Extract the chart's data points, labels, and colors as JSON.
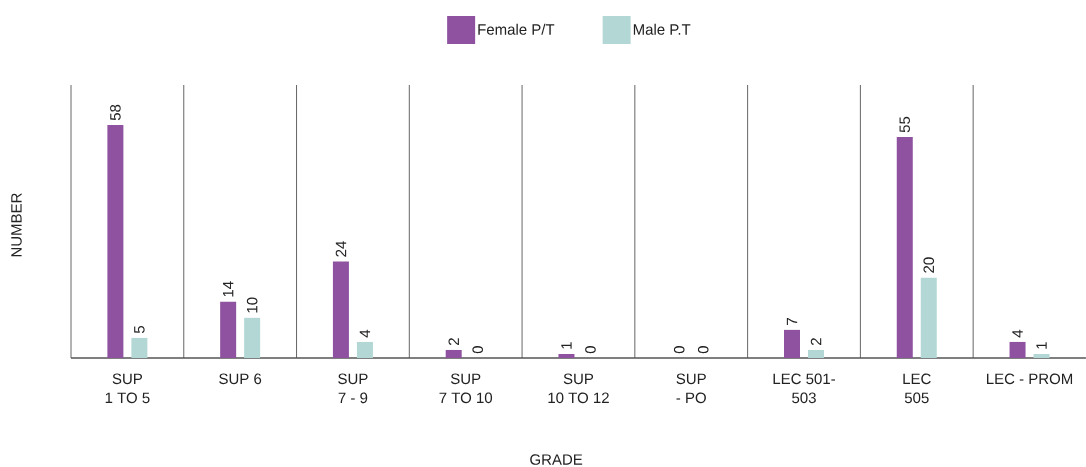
{
  "chart_data": {
    "type": "bar",
    "xlabel": "GRADE",
    "ylabel": "NUMBER",
    "categories": [
      "SUP\n1 TO 5",
      "SUP 6",
      "SUP\n7 - 9",
      "SUP\n7 TO 10",
      "SUP\n10 TO 12",
      "SUP\n- PO",
      "LEC 501-\n503",
      "LEC\n505",
      "LEC - PROM"
    ],
    "series": [
      {
        "name": "Female P/T",
        "color": "#8e52a0",
        "values": [
          58,
          14,
          24,
          2,
          1,
          0,
          7,
          55,
          4
        ]
      },
      {
        "name": "Male P.T",
        "color": "#b2d7d5",
        "values": [
          5,
          10,
          4,
          0,
          0,
          0,
          2,
          20,
          1
        ]
      }
    ],
    "data_labels": true,
    "grid": "x",
    "legend": "top"
  }
}
